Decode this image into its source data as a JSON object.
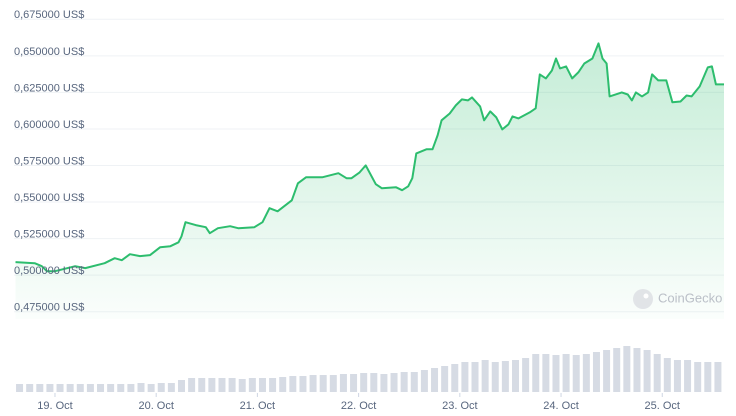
{
  "chart_data": {
    "type": "line",
    "x": [
      -0.39,
      -0.2,
      -0.13,
      -0.08,
      0.0,
      0.2,
      0.3,
      0.49,
      0.59,
      0.66,
      0.74,
      0.84,
      0.94,
      1.04,
      1.14,
      1.22,
      1.25,
      1.29,
      1.39,
      1.49,
      1.53,
      1.61,
      1.73,
      1.81,
      1.97,
      2.05,
      2.12,
      2.2,
      2.34,
      2.4,
      2.48,
      2.64,
      2.8,
      2.88,
      2.93,
      3.01,
      3.07,
      3.17,
      3.23,
      3.37,
      3.43,
      3.49,
      3.53,
      3.57,
      3.67,
      3.73,
      3.78,
      3.82,
      3.9,
      3.96,
      4.02,
      4.08,
      4.12,
      4.2,
      4.24,
      4.3,
      4.36,
      4.42,
      4.48,
      4.52,
      4.58,
      4.69,
      4.75,
      4.79,
      4.85,
      4.91,
      4.95,
      4.99,
      5.05,
      5.11,
      5.17,
      5.23,
      5.31,
      5.37,
      5.41,
      5.45,
      5.48,
      5.6,
      5.66,
      5.7,
      5.74,
      5.8,
      5.86,
      5.9,
      5.96,
      6.04,
      6.1,
      6.18,
      6.24,
      6.29,
      6.37,
      6.45,
      6.49,
      6.53,
      6.61
    ],
    "values": [
      0.5089,
      0.5082,
      0.5061,
      0.5027,
      0.5027,
      0.5061,
      0.5048,
      0.5082,
      0.5116,
      0.5102,
      0.5143,
      0.513,
      0.5137,
      0.5191,
      0.5198,
      0.5225,
      0.5266,
      0.5362,
      0.5342,
      0.5328,
      0.5287,
      0.5321,
      0.5335,
      0.5321,
      0.5328,
      0.5362,
      0.5458,
      0.5437,
      0.5512,
      0.5628,
      0.5669,
      0.5669,
      0.5697,
      0.5663,
      0.5663,
      0.5703,
      0.5751,
      0.5622,
      0.5594,
      0.5601,
      0.5581,
      0.5608,
      0.5663,
      0.5833,
      0.5861,
      0.5861,
      0.5956,
      0.6059,
      0.6106,
      0.6161,
      0.6202,
      0.6195,
      0.6216,
      0.6154,
      0.6059,
      0.612,
      0.6079,
      0.5997,
      0.6031,
      0.6086,
      0.6072,
      0.6113,
      0.6141,
      0.6373,
      0.6346,
      0.64,
      0.6482,
      0.6414,
      0.6428,
      0.6346,
      0.6387,
      0.6448,
      0.6482,
      0.6585,
      0.6482,
      0.6448,
      0.6223,
      0.625,
      0.6236,
      0.6195,
      0.625,
      0.6223,
      0.625,
      0.6373,
      0.6332,
      0.6332,
      0.6182,
      0.6188,
      0.6229,
      0.6223,
      0.6291,
      0.6421,
      0.6428,
      0.6305,
      0.6305
    ],
    "color": "#2dbd6e",
    "xlim": [
      -0.39,
      6.61
    ],
    "xticks": [
      {
        "value": 0,
        "label": "19. Oct"
      },
      {
        "value": 1,
        "label": "20. Oct"
      },
      {
        "value": 2,
        "label": "21. Oct"
      },
      {
        "value": 3,
        "label": "22. Oct"
      },
      {
        "value": 4,
        "label": "23. Oct"
      },
      {
        "value": 5,
        "label": "24. Oct"
      },
      {
        "value": 6,
        "label": "25. Oct"
      }
    ],
    "ylim": [
      0.47,
      0.68
    ],
    "yticks": [
      {
        "value": 0.475,
        "label": "0,475000 US$"
      },
      {
        "value": 0.5,
        "label": "0,500000 US$"
      },
      {
        "value": 0.525,
        "label": "0,525000 US$"
      },
      {
        "value": 0.55,
        "label": "0,550000 US$"
      },
      {
        "value": 0.575,
        "label": "0,575000 US$"
      },
      {
        "value": 0.6,
        "label": "0,600000 US$"
      },
      {
        "value": 0.625,
        "label": "0,625000 US$"
      },
      {
        "value": 0.65,
        "label": "0,650000 US$"
      },
      {
        "value": 0.675,
        "label": "0,675000 US$"
      }
    ],
    "grid": true,
    "volume": {
      "x": [
        -0.35,
        -0.25,
        -0.15,
        -0.05,
        0.05,
        0.15,
        0.25,
        0.35,
        0.45,
        0.55,
        0.65,
        0.75,
        0.85,
        0.95,
        1.05,
        1.15,
        1.25,
        1.35,
        1.45,
        1.55,
        1.65,
        1.75,
        1.85,
        1.95,
        2.05,
        2.15,
        2.25,
        2.35,
        2.45,
        2.55,
        2.65,
        2.75,
        2.85,
        2.95,
        3.05,
        3.15,
        3.25,
        3.35,
        3.45,
        3.55,
        3.65,
        3.75,
        3.85,
        3.95,
        4.05,
        4.15,
        4.25,
        4.35,
        4.45,
        4.55,
        4.65,
        4.75,
        4.85,
        4.95,
        5.05,
        5.15,
        5.25,
        5.35,
        5.45,
        5.55,
        5.65,
        5.75,
        5.85,
        5.95,
        6.05,
        6.15,
        6.25,
        6.35,
        6.45,
        6.55
      ],
      "values": [
        8,
        8,
        8,
        8,
        8,
        8,
        8,
        8,
        8,
        8,
        8,
        8,
        9,
        8,
        9,
        9,
        12,
        14,
        14,
        14,
        14,
        14,
        13,
        14,
        14,
        14,
        15,
        16,
        16,
        17,
        17,
        17,
        18,
        18,
        19,
        19,
        18,
        19,
        20,
        20,
        22,
        24,
        26,
        28,
        30,
        30,
        32,
        30,
        31,
        32,
        34,
        38,
        38,
        37,
        38,
        37,
        38,
        40,
        42,
        44,
        46,
        44,
        42,
        38,
        34,
        32,
        32,
        30,
        30,
        30
      ],
      "color": "#d6dbe4",
      "ylim": [
        0,
        50
      ]
    },
    "watermark": "CoinGecko"
  }
}
